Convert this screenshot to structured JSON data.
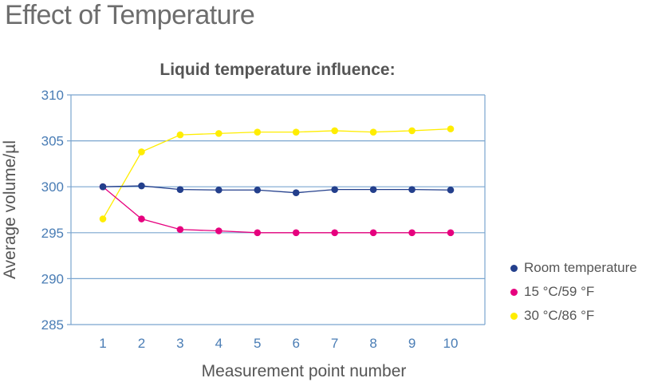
{
  "page_title": "Effect of Temperature",
  "chart_data": {
    "type": "line",
    "title": "Liquid temperature influence:",
    "xlabel": "Measurement point number",
    "ylabel": "Average volume/µl",
    "categories": [
      "1",
      "2",
      "3",
      "4",
      "5",
      "6",
      "7",
      "8",
      "9",
      "10"
    ],
    "ylim": [
      285,
      310
    ],
    "yticks": [
      "310",
      "305",
      "300",
      "295",
      "290",
      "285"
    ],
    "grid": true,
    "legend_position": "right",
    "series": [
      {
        "name": "Room temperature",
        "color": "#233f8c",
        "values": [
          300.0,
          300.1,
          299.7,
          299.65,
          299.65,
          299.35,
          299.7,
          299.7,
          299.7,
          299.65
        ]
      },
      {
        "name": "15 °C/59 °F",
        "color": "#e6007e",
        "values": [
          300.0,
          296.5,
          295.35,
          295.2,
          295.0,
          295.0,
          295.0,
          295.0,
          295.0,
          295.0
        ]
      },
      {
        "name": "30 °C/86 °F",
        "color": "#ffed00",
        "values": [
          296.5,
          303.8,
          305.65,
          305.8,
          305.95,
          305.95,
          306.1,
          305.95,
          306.1,
          306.3
        ]
      }
    ]
  }
}
